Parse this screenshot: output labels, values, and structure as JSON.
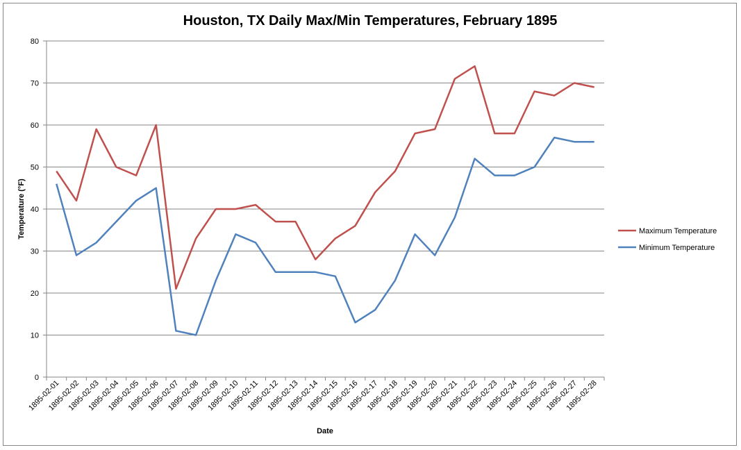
{
  "chart_data": {
    "type": "line",
    "title": "Houston, TX Daily Max/Min Temperatures, February 1895",
    "xlabel": "Date",
    "ylabel": "Temperature (°F)",
    "ylim": [
      0,
      80
    ],
    "yticks": [
      0,
      10,
      20,
      30,
      40,
      50,
      60,
      70,
      80
    ],
    "grid": true,
    "legend_position": "right",
    "categories": [
      "1895-02-01",
      "1895-02-02",
      "1895-02-03",
      "1895-02-04",
      "1895-02-05",
      "1895-02-06",
      "1895-02-07",
      "1895-02-08",
      "1895-02-09",
      "1895-02-10",
      "1895-02-11",
      "1895-02-12",
      "1895-02-13",
      "1895-02-14",
      "1895-02-15",
      "1895-02-16",
      "1895-02-17",
      "1895-02-18",
      "1895-02-19",
      "1895-02-20",
      "1895-02-21",
      "1895-02-22",
      "1895-02-23",
      "1895-02-24",
      "1895-02-25",
      "1895-02-26",
      "1895-02-27",
      "1895-02-28"
    ],
    "series": [
      {
        "name": "Maximum Temperature",
        "color": "#c0504d",
        "values": [
          49,
          42,
          59,
          50,
          48,
          60,
          21,
          33,
          40,
          40,
          41,
          37,
          37,
          28,
          33,
          36,
          44,
          49,
          58,
          59,
          71,
          74,
          58,
          58,
          68,
          67,
          70,
          69
        ]
      },
      {
        "name": "Minimum Temperature",
        "color": "#4f81bd",
        "values": [
          46,
          29,
          32,
          37,
          42,
          45,
          11,
          10,
          23,
          34,
          32,
          25,
          25,
          25,
          24,
          13,
          16,
          23,
          34,
          29,
          38,
          52,
          48,
          48,
          50,
          57,
          56,
          56
        ]
      }
    ]
  }
}
